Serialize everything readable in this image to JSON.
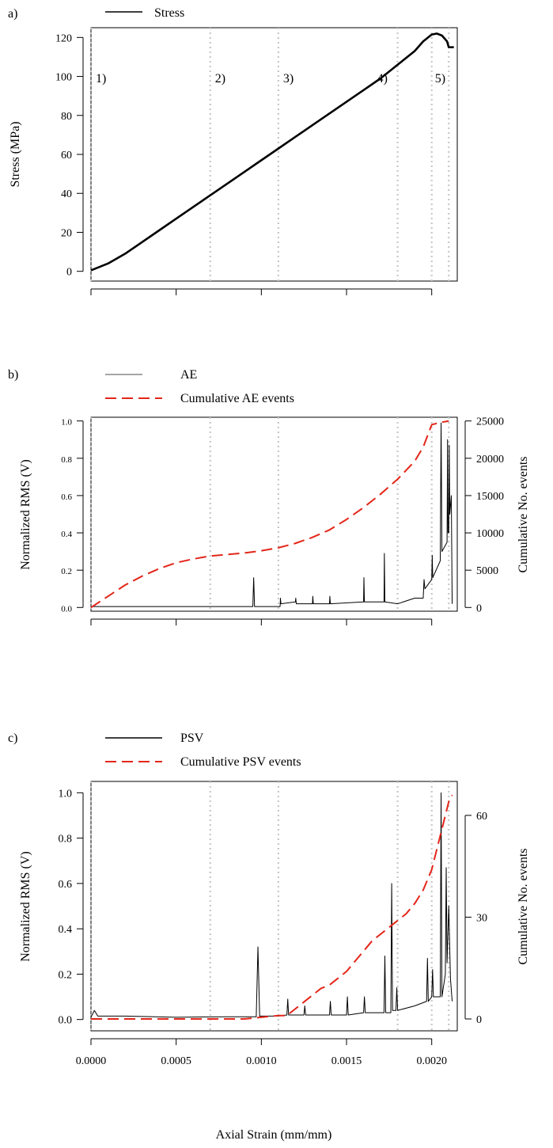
{
  "figure": {
    "xlabel": "Axial Strain (mm/mm)",
    "x_ticks": [
      "0.0000",
      "0.0005",
      "0.0010",
      "0.0015",
      "0.0020"
    ],
    "phase_lines_x": [
      0.0,
      0.0007,
      0.0011,
      0.0018,
      0.002,
      0.0021
    ],
    "phase_labels": [
      {
        "text": "1)",
        "x": 0.0
      },
      {
        "text": "2)",
        "x": 0.0007
      },
      {
        "text": "3)",
        "x": 0.0011
      },
      {
        "text": "4)",
        "x": 0.0018
      },
      {
        "text": "5)",
        "x": 0.002
      }
    ]
  },
  "colors": {
    "stress": "#000000",
    "ae": "#000000",
    "psv": "#000000",
    "cumulative": "#e32619",
    "phase_lines": "#c8c8c8"
  },
  "panels": {
    "a": {
      "label": "a)",
      "legend": [
        "Stress"
      ],
      "ylabel": "Stress (MPa)",
      "y_ticks": [
        "0",
        "20",
        "40",
        "60",
        "80",
        "100",
        "120"
      ]
    },
    "b": {
      "label": "b)",
      "legend": [
        "AE",
        "Cumulative AE events"
      ],
      "ylabel": "Normalized RMS (V)",
      "ylabel_right": "Cumulative No. events",
      "y_ticks": [
        "0.0",
        "0.2",
        "0.4",
        "0.6",
        "0.8",
        "1.0"
      ],
      "y_ticks_right": [
        "0",
        "5000",
        "10000",
        "15000",
        "20000",
        "25000"
      ]
    },
    "c": {
      "label": "c)",
      "legend": [
        "PSV",
        "Cumulative PSV events"
      ],
      "ylabel": "Normalized RMS (V)",
      "ylabel_right": "Cumulative No. events",
      "y_ticks": [
        "0.0",
        "0.2",
        "0.4",
        "0.6",
        "0.8",
        "1.0"
      ],
      "y_ticks_right": [
        "0",
        "30",
        "60"
      ]
    }
  },
  "chart_data": [
    {
      "type": "line",
      "panel": "a",
      "xlim": [
        0.0,
        0.00215
      ],
      "ylim": [
        -5,
        125
      ],
      "series": [
        {
          "name": "Stress",
          "x": [
            0.0,
            0.0001,
            0.0002,
            0.0003,
            0.0004,
            0.0005,
            0.0006,
            0.0007,
            0.0008,
            0.0009,
            0.001,
            0.0011,
            0.0012,
            0.0013,
            0.0014,
            0.0015,
            0.0016,
            0.0017,
            0.0018,
            0.0019,
            0.00195,
            0.002,
            0.00203,
            0.00206,
            0.00209,
            0.0021,
            0.00211,
            0.00213
          ],
          "y": [
            0.5,
            4,
            9,
            15,
            21,
            27,
            33,
            39,
            45,
            51,
            57,
            63,
            69,
            75,
            81,
            87,
            93,
            99,
            106,
            113,
            118,
            121.5,
            122,
            121,
            118,
            115,
            115,
            115
          ]
        }
      ]
    },
    {
      "type": "line",
      "panel": "b",
      "xlim": [
        0.0,
        0.00215
      ],
      "ylim": [
        -0.02,
        1.02
      ],
      "y2lim": [
        -500,
        25500
      ],
      "series": [
        {
          "name": "AE",
          "axis": "left",
          "x": [
            0.0,
            0.0005,
            0.00095,
            0.000955,
            0.00096,
            0.00111,
            0.001112,
            0.001115,
            0.0012,
            0.001202,
            0.001205,
            0.0013,
            0.001302,
            0.001305,
            0.0014,
            0.001402,
            0.001405,
            0.0016,
            0.001602,
            0.001605,
            0.00172,
            0.001722,
            0.001725,
            0.0018,
            0.0019,
            0.00195,
            0.001955,
            0.00196,
            0.002,
            0.002003,
            0.002006,
            0.00205,
            0.002055,
            0.00206,
            0.00209,
            0.002093,
            0.002096,
            0.0021,
            0.002103,
            0.002106,
            0.002115,
            0.00212
          ],
          "y": [
            0.005,
            0.005,
            0.005,
            0.16,
            0.005,
            0.005,
            0.05,
            0.02,
            0.03,
            0.05,
            0.02,
            0.02,
            0.06,
            0.02,
            0.02,
            0.06,
            0.02,
            0.03,
            0.16,
            0.03,
            0.03,
            0.29,
            0.03,
            0.02,
            0.05,
            0.05,
            0.15,
            0.1,
            0.15,
            0.28,
            0.16,
            0.25,
            0.99,
            0.3,
            0.35,
            0.9,
            0.4,
            0.4,
            0.87,
            0.5,
            0.6,
            0.02
          ]
        },
        {
          "name": "Cumulative AE events",
          "axis": "right",
          "dashed": true,
          "x": [
            0.0,
            0.0001,
            0.0002,
            0.0003,
            0.0004,
            0.0005,
            0.0006,
            0.0007,
            0.0008,
            0.0009,
            0.001,
            0.0011,
            0.0012,
            0.0013,
            0.0014,
            0.0015,
            0.0016,
            0.0017,
            0.0018,
            0.0019,
            0.00195,
            0.002,
            0.00205,
            0.0021
          ],
          "y": [
            0,
            1500,
            3000,
            4200,
            5200,
            6000,
            6500,
            6900,
            7100,
            7300,
            7600,
            8000,
            8600,
            9400,
            10400,
            11800,
            13400,
            15200,
            17200,
            19600,
            21500,
            24500,
            24800,
            25000
          ]
        }
      ]
    },
    {
      "type": "line",
      "panel": "c",
      "xlim": [
        0.0,
        0.00215
      ],
      "ylim": [
        -0.05,
        1.05
      ],
      "y2lim": [
        -3.5,
        70
      ],
      "series": [
        {
          "name": "PSV",
          "axis": "left",
          "x": [
            0.0,
            2e-05,
            4e-05,
            0.0002,
            0.0005,
            0.0008,
            0.00097,
            0.00098,
            0.00099,
            0.0011,
            0.00115,
            0.001155,
            0.00116,
            0.0012,
            0.00125,
            0.001255,
            0.00126,
            0.0014,
            0.001405,
            0.00141,
            0.0015,
            0.001505,
            0.00151,
            0.0016,
            0.001605,
            0.00161,
            0.00172,
            0.001725,
            0.00173,
            0.00176,
            0.001765,
            0.00177,
            0.00179,
            0.001795,
            0.0018,
            0.0019,
            0.00197,
            0.001975,
            0.00198,
            0.002,
            0.002005,
            0.00201,
            0.00205,
            0.002055,
            0.00206,
            0.00208,
            0.002085,
            0.00209,
            0.0021,
            0.00211,
            0.00212
          ],
          "y": [
            0.01,
            0.04,
            0.015,
            0.015,
            0.01,
            0.012,
            0.012,
            0.32,
            0.015,
            0.015,
            0.02,
            0.09,
            0.02,
            0.02,
            0.02,
            0.06,
            0.02,
            0.02,
            0.08,
            0.02,
            0.02,
            0.1,
            0.02,
            0.03,
            0.1,
            0.03,
            0.03,
            0.28,
            0.03,
            0.03,
            0.6,
            0.04,
            0.04,
            0.14,
            0.04,
            0.06,
            0.08,
            0.27,
            0.08,
            0.1,
            0.22,
            0.1,
            0.1,
            1.0,
            0.1,
            0.2,
            0.67,
            0.25,
            0.5,
            0.18,
            0.08
          ]
        },
        {
          "name": "Cumulative PSV events",
          "axis": "right",
          "dashed": true,
          "x": [
            0.0,
            0.0005,
            0.0009,
            0.0011,
            0.00115,
            0.0012,
            0.00125,
            0.0013,
            0.00135,
            0.0014,
            0.00145,
            0.0015,
            0.00155,
            0.0016,
            0.00165,
            0.0017,
            0.00175,
            0.0018,
            0.00185,
            0.0019,
            0.00195,
            0.002,
            0.00205,
            0.0021,
            0.00212
          ],
          "y": [
            0,
            0,
            0,
            1,
            1,
            3,
            5,
            7,
            9,
            10,
            12,
            14,
            17,
            20,
            23,
            25,
            27,
            29,
            31,
            34,
            38,
            44,
            54,
            64,
            66
          ]
        }
      ]
    }
  ]
}
